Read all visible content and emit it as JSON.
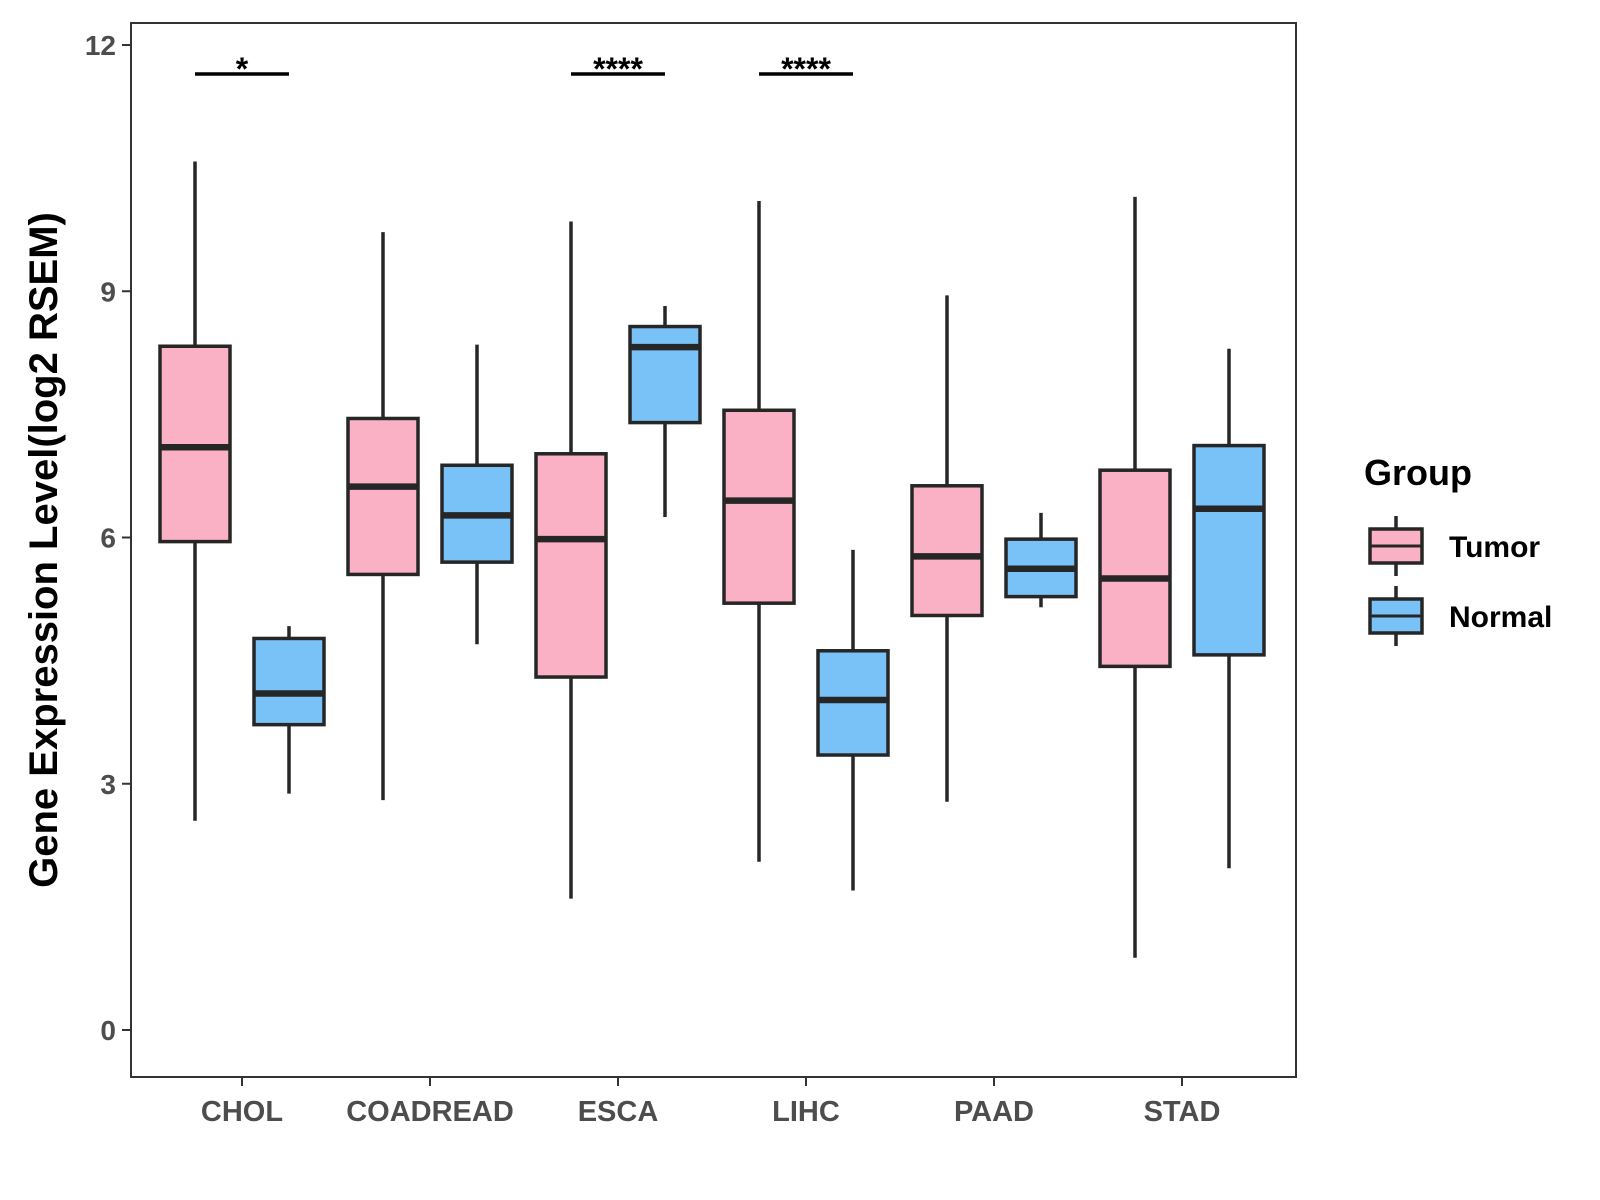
{
  "chart_data": {
    "type": "boxplot",
    "title": "",
    "xlabel": "",
    "ylabel": "Gene Expression Level(log2 RSEM)",
    "ylim": [
      -0.75,
      12.3
    ],
    "yticks": [
      0,
      3,
      6,
      9,
      12
    ],
    "categories": [
      "CHOL",
      "COADREAD",
      "ESCA",
      "LIHC",
      "PAAD",
      "STAD"
    ],
    "legend": {
      "title": "Group",
      "position": "right",
      "entries": [
        {
          "name": "Tumor",
          "color": "#fbb1c5"
        },
        {
          "name": "Normal",
          "color": "#79c2f8"
        }
      ]
    },
    "series": [
      {
        "name": "Tumor",
        "color": "#fbb1c5",
        "boxes": [
          {
            "category": "CHOL",
            "min": 2.55,
            "q1": 5.95,
            "median": 7.1,
            "q3": 8.33,
            "max": 10.58
          },
          {
            "category": "COADREAD",
            "min": 2.8,
            "q1": 5.55,
            "median": 6.62,
            "q3": 7.45,
            "max": 9.72
          },
          {
            "category": "ESCA",
            "min": 1.6,
            "q1": 4.3,
            "median": 5.98,
            "q3": 7.02,
            "max": 9.85
          },
          {
            "category": "LIHC",
            "min": 2.05,
            "q1": 5.2,
            "median": 6.45,
            "q3": 7.55,
            "max": 10.1
          },
          {
            "category": "PAAD",
            "min": 2.78,
            "q1": 5.05,
            "median": 5.77,
            "q3": 6.63,
            "max": 8.95
          },
          {
            "category": "STAD",
            "min": 0.88,
            "q1": 4.43,
            "median": 5.5,
            "q3": 6.82,
            "max": 10.15
          }
        ]
      },
      {
        "name": "Normal",
        "color": "#79c2f8",
        "boxes": [
          {
            "category": "CHOL",
            "min": 2.88,
            "q1": 3.72,
            "median": 4.1,
            "q3": 4.77,
            "max": 4.92
          },
          {
            "category": "COADREAD",
            "min": 4.7,
            "q1": 5.7,
            "median": 6.27,
            "q3": 6.88,
            "max": 8.35
          },
          {
            "category": "ESCA",
            "min": 6.25,
            "q1": 7.4,
            "median": 8.32,
            "q3": 8.57,
            "max": 8.82
          },
          {
            "category": "LIHC",
            "min": 1.7,
            "q1": 3.35,
            "median": 4.02,
            "q3": 4.62,
            "max": 5.85
          },
          {
            "category": "PAAD",
            "min": 5.15,
            "q1": 5.28,
            "median": 5.62,
            "q3": 5.98,
            "max": 6.3
          },
          {
            "category": "STAD",
            "min": 1.97,
            "q1": 4.57,
            "median": 6.35,
            "q3": 7.12,
            "max": 8.3
          }
        ]
      }
    ],
    "significance": [
      {
        "category": "CHOL",
        "label": "*"
      },
      {
        "category": "ESCA",
        "label": "****"
      },
      {
        "category": "LIHC",
        "label": "****"
      }
    ]
  }
}
